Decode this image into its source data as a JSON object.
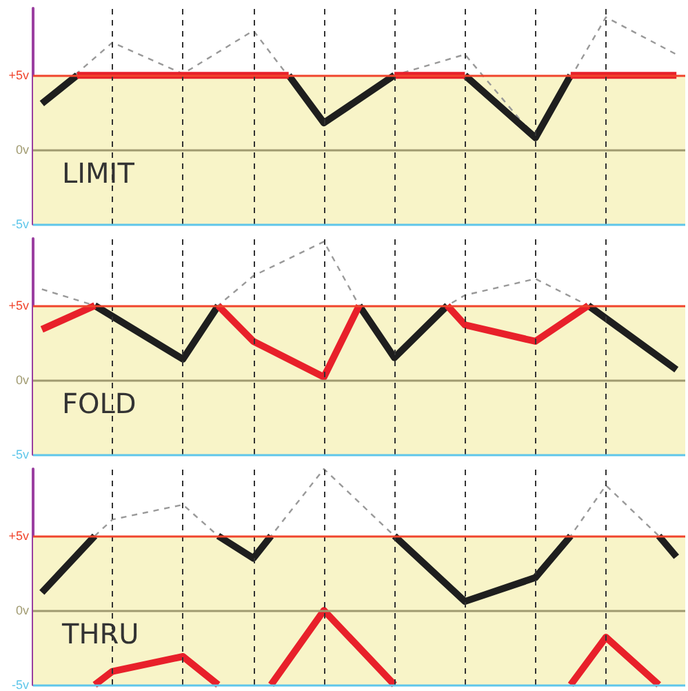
{
  "chart_data": [
    {
      "type": "line",
      "title": "LIMIT",
      "categories": [
        null,
        null,
        null,
        null,
        null,
        null,
        null,
        null,
        null,
        null,
        null,
        null,
        null,
        null,
        null,
        null,
        null,
        null,
        null,
        null,
        null,
        null,
        null,
        null,
        null,
        null,
        null,
        null,
        null,
        null,
        null,
        null,
        null,
        null,
        null,
        null,
        null
      ],
      "ylim": [
        -5,
        9.5
      ],
      "yticks": [
        {
          "value": -5,
          "label": "-5v"
        },
        {
          "value": 0,
          "label": "0v"
        },
        {
          "value": 5,
          "label": "+5v"
        }
      ],
      "tick_labels": "y",
      "grid": "x",
      "marker": "none",
      "bands": [
        {
          "axis": "y",
          "from": -5,
          "to": 5,
          "color": "#f8f4c8"
        }
      ],
      "ref_lines": [
        {
          "axis": "y",
          "value": 5,
          "color": "#f0442c"
        },
        {
          "axis": "y",
          "value": 0,
          "color": "#a09a70"
        },
        {
          "axis": "y",
          "value": -5,
          "color": "#5ec6ea"
        }
      ],
      "series": [
        {
          "color": "#999999",
          "line_style": "dashed",
          "values": [
            3.1,
            null,
            null,
            null,
            7.2,
            null,
            null,
            null,
            5.1,
            null,
            null,
            null,
            8,
            null,
            null,
            null,
            1.8,
            null,
            null,
            null,
            5,
            null,
            null,
            null,
            6.4,
            null,
            null,
            null,
            0.8,
            null,
            null,
            null,
            8.9,
            null,
            null,
            null,
            6.4
          ]
        },
        {
          "color": "#1e1e1e",
          "line_style": "solid",
          "values": [
            3.1,
            null,
            5,
            null,
            null,
            null,
            null,
            null,
            null,
            null,
            null,
            null,
            null,
            null,
            null,
            null,
            null,
            null,
            null,
            null,
            null,
            null,
            null,
            null,
            null,
            null,
            null,
            null,
            null,
            null,
            null,
            null,
            null,
            null,
            null,
            null,
            null
          ]
        },
        {
          "color": "#1e1e1e",
          "line_style": "solid",
          "values": [
            null,
            null,
            null,
            null,
            null,
            null,
            null,
            null,
            null,
            null,
            null,
            null,
            null,
            null,
            5,
            null,
            1.8,
            null,
            null,
            null,
            5,
            null,
            null,
            null,
            null,
            null,
            null,
            null,
            null,
            null,
            null,
            null,
            null,
            null,
            null,
            null,
            null
          ]
        },
        {
          "color": "#1e1e1e",
          "line_style": "solid",
          "values": [
            null,
            null,
            null,
            null,
            null,
            null,
            null,
            null,
            null,
            null,
            null,
            null,
            null,
            null,
            null,
            null,
            null,
            null,
            null,
            null,
            null,
            null,
            null,
            null,
            5,
            null,
            null,
            null,
            0.8,
            null,
            5,
            null,
            null,
            null,
            null,
            null,
            null
          ]
        },
        {
          "color": "#e8202a",
          "line_style": "solid",
          "values": [
            null,
            null,
            5,
            null,
            null,
            null,
            null,
            null,
            null,
            null,
            null,
            null,
            null,
            null,
            5,
            null,
            null,
            null,
            null,
            null,
            null,
            null,
            null,
            null,
            null,
            null,
            null,
            null,
            null,
            null,
            null,
            null,
            null,
            null,
            null,
            null,
            null
          ]
        },
        {
          "color": "#e8202a",
          "line_style": "solid",
          "values": [
            null,
            null,
            null,
            null,
            null,
            null,
            null,
            null,
            null,
            null,
            null,
            null,
            null,
            null,
            null,
            null,
            null,
            null,
            null,
            null,
            5,
            null,
            null,
            null,
            5,
            null,
            null,
            null,
            null,
            null,
            null,
            null,
            null,
            null,
            null,
            null,
            null
          ]
        },
        {
          "color": "#e8202a",
          "line_style": "solid",
          "values": [
            null,
            null,
            null,
            null,
            null,
            null,
            null,
            null,
            null,
            null,
            null,
            null,
            null,
            null,
            null,
            null,
            null,
            null,
            null,
            null,
            null,
            null,
            null,
            null,
            null,
            null,
            null,
            null,
            null,
            null,
            5,
            null,
            null,
            null,
            null,
            null,
            5
          ]
        }
      ]
    },
    {
      "type": "line",
      "title": "FOLD",
      "categories": [
        null,
        null,
        null,
        null,
        null,
        null,
        null,
        null,
        null,
        null,
        null,
        null,
        null,
        null,
        null,
        null,
        null,
        null,
        null,
        null,
        null,
        null,
        null,
        null,
        null,
        null,
        null,
        null,
        null,
        null,
        null,
        null,
        null,
        null,
        null,
        null,
        null
      ],
      "ylim": [
        -5,
        9.5
      ],
      "yticks": [
        {
          "value": -5,
          "label": "-5v"
        },
        {
          "value": 0,
          "label": "0v"
        },
        {
          "value": 5,
          "label": "+5v"
        }
      ],
      "tick_labels": "y",
      "grid": "x",
      "marker": "none",
      "bands": [
        {
          "axis": "y",
          "from": -5,
          "to": 5,
          "color": "#f8f4c8"
        }
      ],
      "ref_lines": [
        {
          "axis": "y",
          "value": 5,
          "color": "#f0442c"
        },
        {
          "axis": "y",
          "value": 0,
          "color": "#a09a70"
        },
        {
          "axis": "y",
          "value": -5,
          "color": "#5ec6ea"
        }
      ],
      "series": [
        {
          "color": "#999999",
          "line_style": "dashed",
          "values": [
            6.1,
            null,
            null,
            5,
            null,
            null,
            null,
            null,
            1.4,
            null,
            5,
            null,
            7,
            null,
            null,
            null,
            9.3,
            null,
            5,
            null,
            1.5,
            null,
            null,
            5,
            5.7,
            null,
            null,
            null,
            6.8,
            null,
            null,
            5,
            null,
            null,
            null,
            null,
            0.7
          ]
        },
        {
          "color": "#1e1e1e",
          "line_style": "solid",
          "values": [
            null,
            null,
            null,
            5,
            null,
            null,
            null,
            null,
            1.4,
            null,
            5,
            null,
            null,
            null,
            null,
            null,
            null,
            null,
            null,
            null,
            null,
            null,
            null,
            null,
            null,
            null,
            null,
            null,
            null,
            null,
            null,
            null,
            null,
            null,
            null,
            null,
            null
          ]
        },
        {
          "color": "#1e1e1e",
          "line_style": "solid",
          "values": [
            null,
            null,
            null,
            null,
            null,
            null,
            null,
            null,
            null,
            null,
            null,
            null,
            null,
            null,
            null,
            null,
            null,
            null,
            5,
            null,
            1.5,
            null,
            null,
            5,
            null,
            null,
            null,
            null,
            null,
            null,
            null,
            null,
            null,
            null,
            null,
            null,
            null
          ]
        },
        {
          "color": "#1e1e1e",
          "line_style": "solid",
          "values": [
            null,
            null,
            null,
            null,
            null,
            null,
            null,
            null,
            null,
            null,
            null,
            null,
            null,
            null,
            null,
            null,
            null,
            null,
            null,
            null,
            null,
            null,
            null,
            null,
            null,
            null,
            null,
            null,
            null,
            null,
            null,
            5,
            null,
            null,
            null,
            null,
            0.7
          ]
        },
        {
          "color": "#e8202a",
          "line_style": "solid",
          "values": [
            3.4,
            null,
            null,
            5,
            null,
            null,
            null,
            null,
            null,
            null,
            null,
            null,
            null,
            null,
            null,
            null,
            null,
            null,
            null,
            null,
            null,
            null,
            null,
            null,
            null,
            null,
            null,
            null,
            null,
            null,
            null,
            null,
            null,
            null,
            null,
            null,
            null
          ]
        },
        {
          "color": "#e8202a",
          "line_style": "solid",
          "values": [
            null,
            null,
            null,
            null,
            null,
            null,
            null,
            null,
            null,
            null,
            5,
            null,
            2.6,
            null,
            null,
            null,
            0.2,
            null,
            5,
            null,
            null,
            null,
            null,
            null,
            null,
            null,
            null,
            null,
            null,
            null,
            null,
            null,
            null,
            null,
            null,
            null,
            null
          ]
        },
        {
          "color": "#e8202a",
          "line_style": "solid",
          "values": [
            null,
            null,
            null,
            null,
            null,
            null,
            null,
            null,
            null,
            null,
            null,
            null,
            null,
            null,
            null,
            null,
            null,
            null,
            null,
            null,
            null,
            null,
            null,
            5,
            3.7,
            null,
            null,
            null,
            2.6,
            null,
            null,
            5,
            null,
            null,
            null,
            null,
            null
          ]
        }
      ]
    },
    {
      "type": "line",
      "title": "THRU",
      "categories": [
        null,
        null,
        null,
        null,
        null,
        null,
        null,
        null,
        null,
        null,
        null,
        null,
        null,
        null,
        null,
        null,
        null,
        null,
        null,
        null,
        null,
        null,
        null,
        null,
        null,
        null,
        null,
        null,
        null,
        null,
        null,
        null,
        null,
        null,
        null,
        null,
        null
      ],
      "ylim": [
        -5,
        9.5
      ],
      "yticks": [
        {
          "value": -5,
          "label": "-5v"
        },
        {
          "value": 0,
          "label": "0v"
        },
        {
          "value": 5,
          "label": "+5v"
        }
      ],
      "tick_labels": "y",
      "grid": "x",
      "marker": "none",
      "bands": [
        {
          "axis": "y",
          "from": -5,
          "to": 5,
          "color": "#f8f4c8"
        }
      ],
      "ref_lines": [
        {
          "axis": "y",
          "value": 5,
          "color": "#f0442c"
        },
        {
          "axis": "y",
          "value": 0,
          "color": "#a09a70"
        },
        {
          "axis": "y",
          "value": -5,
          "color": "#5ec6ea"
        }
      ],
      "series": [
        {
          "color": "#999999",
          "line_style": "dashed",
          "values": [
            1.2,
            null,
            null,
            5,
            6.1,
            null,
            null,
            null,
            7.1,
            null,
            5,
            null,
            3.5,
            5,
            null,
            null,
            9.5,
            null,
            null,
            null,
            5,
            null,
            null,
            null,
            0.6,
            null,
            null,
            null,
            2.2,
            null,
            5,
            null,
            8.4,
            null,
            null,
            5,
            3.6
          ]
        },
        {
          "color": "#1e1e1e",
          "line_style": "solid",
          "values": [
            1.2,
            null,
            null,
            5,
            null,
            null,
            null,
            null,
            null,
            null,
            null,
            null,
            null,
            null,
            null,
            null,
            null,
            null,
            null,
            null,
            null,
            null,
            null,
            null,
            null,
            null,
            null,
            null,
            null,
            null,
            null,
            null,
            null,
            null,
            null,
            null,
            null
          ]
        },
        {
          "color": "#1e1e1e",
          "line_style": "solid",
          "values": [
            null,
            null,
            null,
            null,
            null,
            null,
            null,
            null,
            null,
            null,
            5,
            null,
            3.5,
            5,
            null,
            null,
            null,
            null,
            null,
            null,
            null,
            null,
            null,
            null,
            null,
            null,
            null,
            null,
            null,
            null,
            null,
            null,
            null,
            null,
            null,
            null,
            null
          ]
        },
        {
          "color": "#1e1e1e",
          "line_style": "solid",
          "values": [
            null,
            null,
            null,
            null,
            null,
            null,
            null,
            null,
            null,
            null,
            null,
            null,
            null,
            null,
            null,
            null,
            null,
            null,
            null,
            null,
            5,
            null,
            null,
            null,
            0.6,
            null,
            null,
            null,
            2.2,
            null,
            5,
            null,
            null,
            null,
            null,
            null,
            null
          ]
        },
        {
          "color": "#1e1e1e",
          "line_style": "solid",
          "values": [
            null,
            null,
            null,
            null,
            null,
            null,
            null,
            null,
            null,
            null,
            null,
            null,
            null,
            null,
            null,
            null,
            null,
            null,
            null,
            null,
            null,
            null,
            null,
            null,
            null,
            null,
            null,
            null,
            null,
            null,
            null,
            null,
            null,
            null,
            null,
            5,
            3.6
          ]
        },
        {
          "color": "#e8202a",
          "line_style": "solid",
          "values": [
            null,
            null,
            null,
            -5,
            -4.1,
            null,
            null,
            null,
            -3.1,
            null,
            -5,
            null,
            null,
            null,
            null,
            null,
            null,
            null,
            null,
            null,
            null,
            null,
            null,
            null,
            null,
            null,
            null,
            null,
            null,
            null,
            null,
            null,
            null,
            null,
            null,
            null,
            null
          ]
        },
        {
          "color": "#e8202a",
          "line_style": "solid",
          "values": [
            null,
            null,
            null,
            null,
            null,
            null,
            null,
            null,
            null,
            null,
            null,
            null,
            null,
            -5,
            null,
            null,
            0,
            null,
            null,
            null,
            -5,
            null,
            null,
            null,
            null,
            null,
            null,
            null,
            null,
            null,
            null,
            null,
            null,
            null,
            null,
            null,
            null
          ]
        },
        {
          "color": "#e8202a",
          "line_style": "solid",
          "values": [
            null,
            null,
            null,
            null,
            null,
            null,
            null,
            null,
            null,
            null,
            null,
            null,
            null,
            null,
            null,
            null,
            null,
            null,
            null,
            null,
            null,
            null,
            null,
            null,
            null,
            null,
            null,
            null,
            null,
            null,
            -5,
            null,
            -1.8,
            null,
            null,
            -5,
            null
          ]
        }
      ]
    }
  ]
}
